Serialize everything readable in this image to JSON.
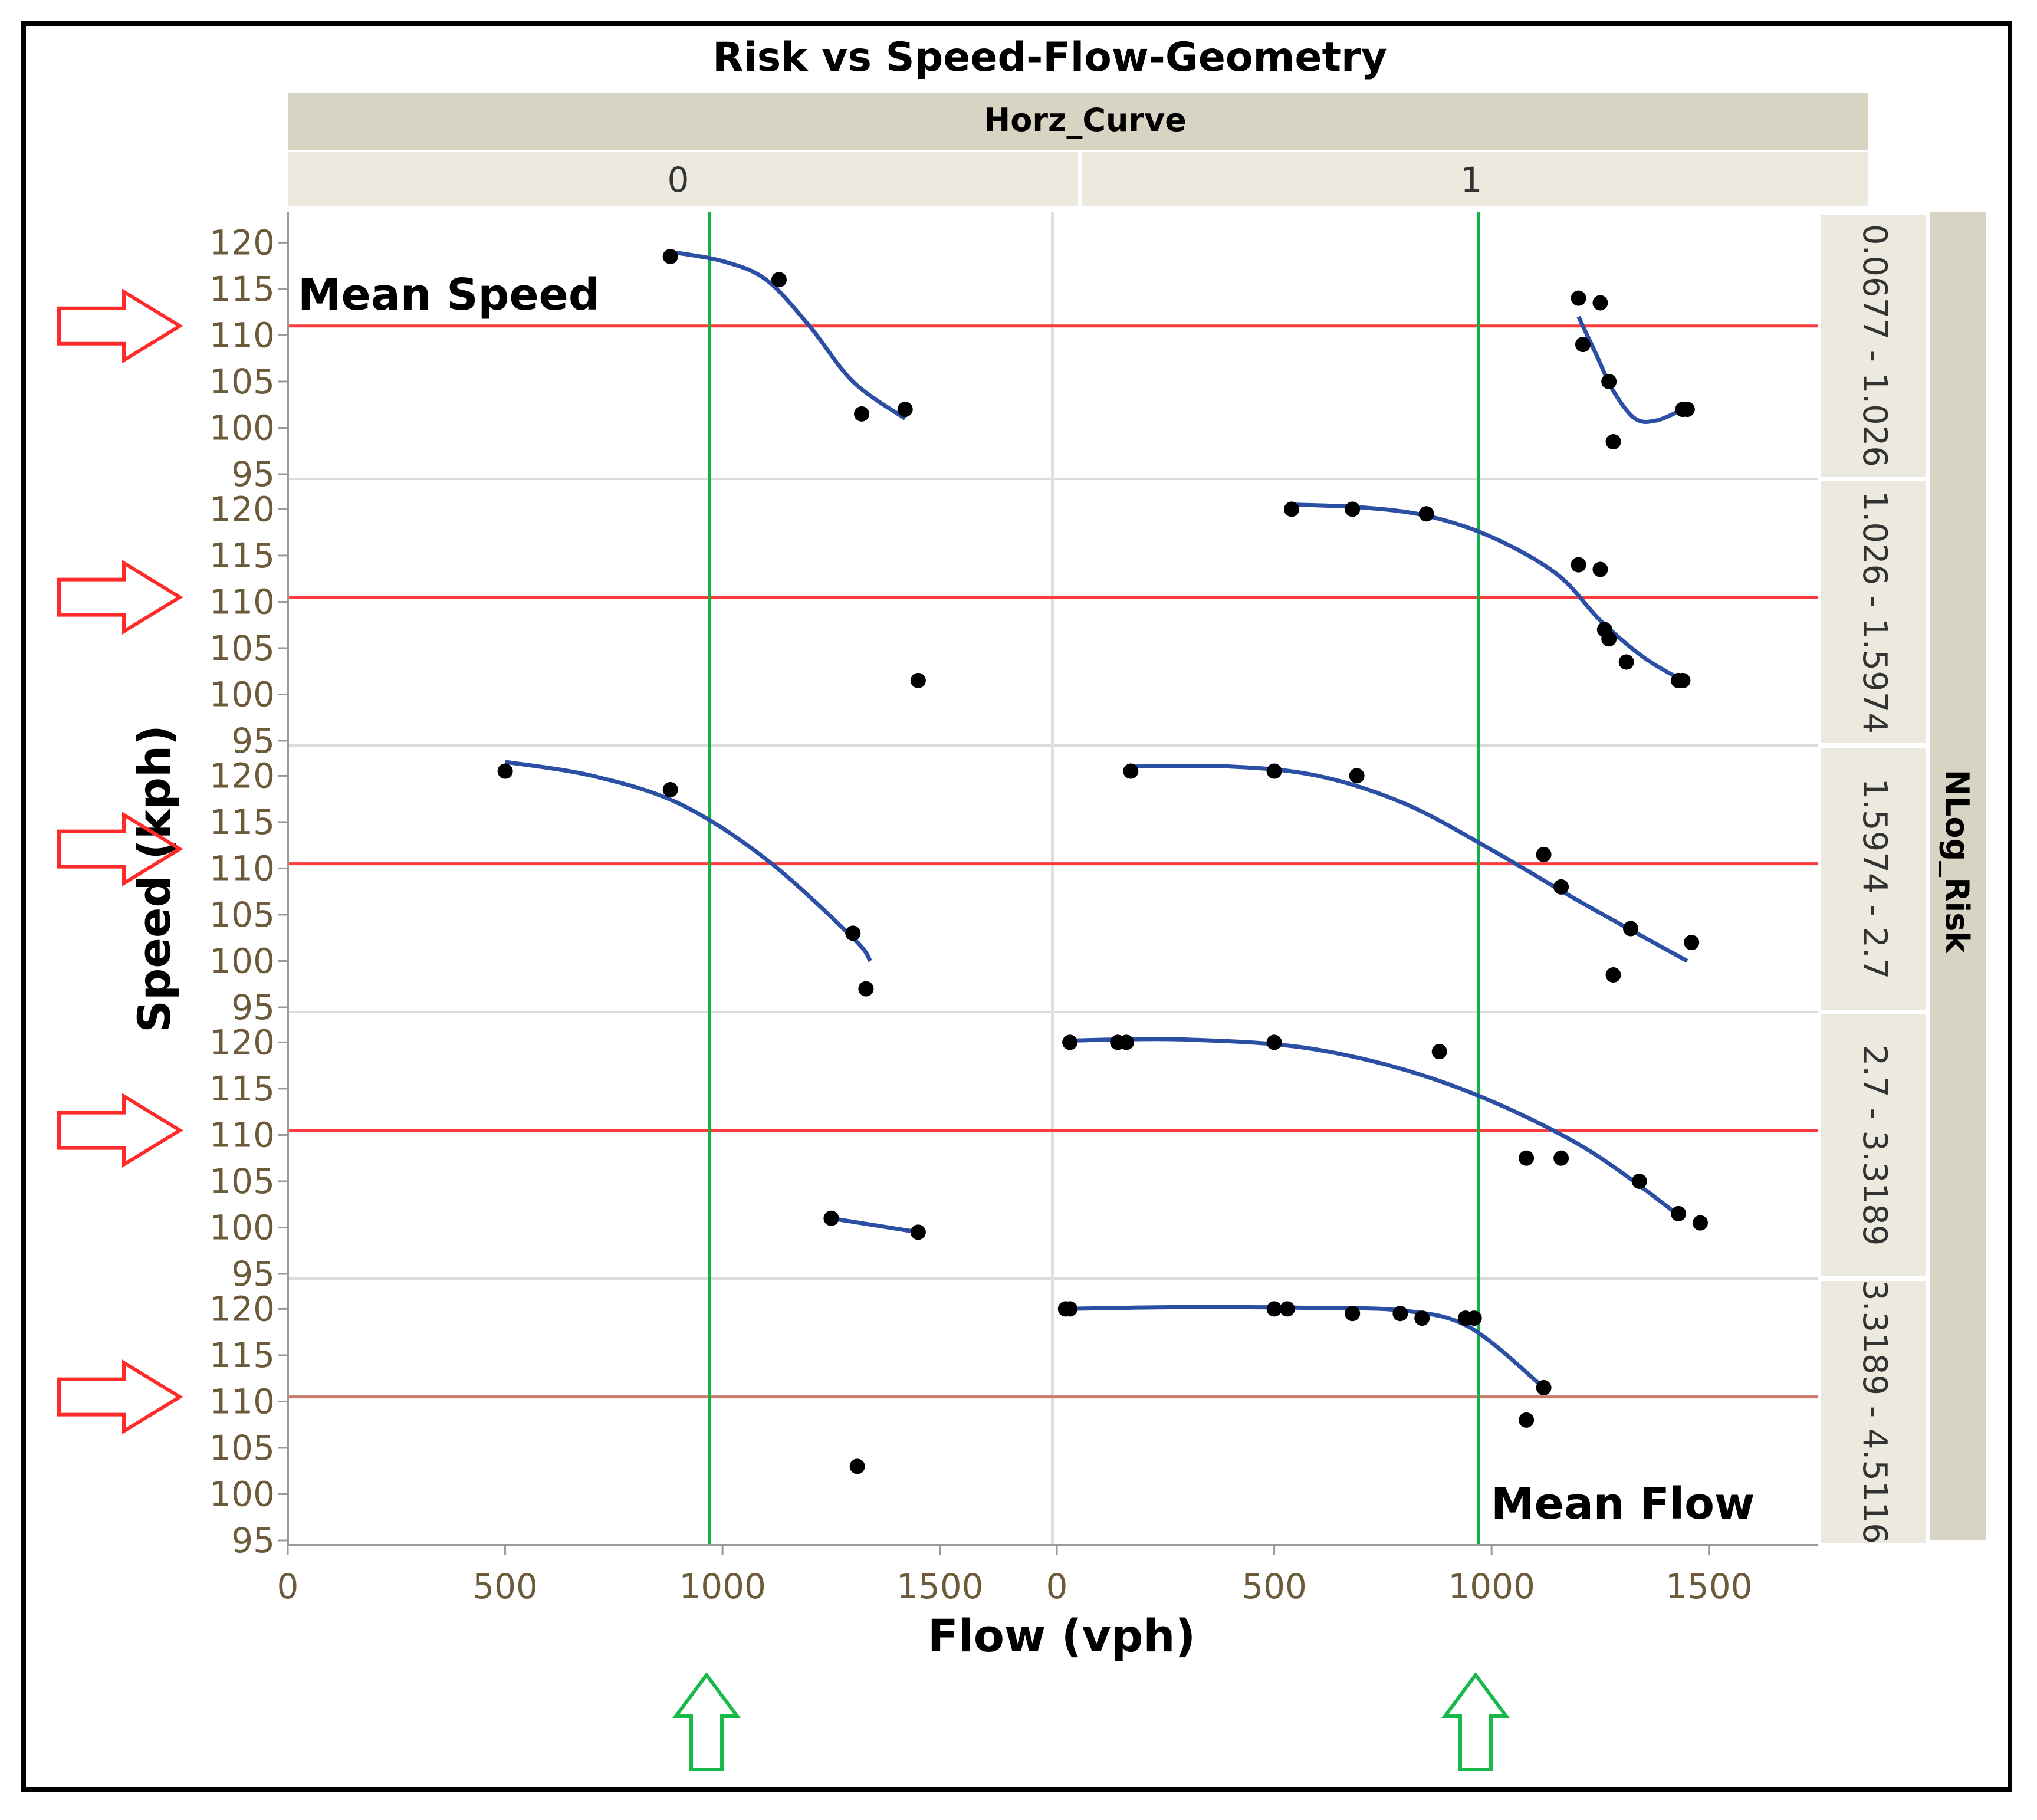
{
  "chart_data": {
    "type": "scatter",
    "title": "Risk vs Speed-Flow-Geometry",
    "column_group_label": "Horz_Curve",
    "columns": [
      "0",
      "1"
    ],
    "row_group_label": "NLog_Risk",
    "rows": [
      "0.0677 - 1.026",
      "1.026 - 1.5974",
      "1.5974 - 2.7",
      "2.7 - 3.3189",
      "3.3189 - 4.5116"
    ],
    "xlabel": "Flow (vph)",
    "ylabel": "Speed (kph)",
    "xlim": [
      0,
      1750
    ],
    "ylim": [
      95,
      122
    ],
    "xticks": [
      "0",
      "500",
      "1000",
      "1500"
    ],
    "yticks": [
      "95",
      "100",
      "105",
      "110",
      "115",
      "120"
    ],
    "mean_speed_label": "Mean Speed",
    "mean_flow_label": "Mean Flow",
    "mean_flow": [
      970,
      970
    ],
    "mean_speed": [
      111,
      110.5,
      110.5,
      110.5,
      110.5
    ],
    "colors": {
      "points": "#000000",
      "fit": "#2b4fa3",
      "mean_speed": "#ff3b3b",
      "mean_speed_last": "#c97a6a",
      "mean_flow": "#14b14a",
      "arrow_red": "#ff2a2a",
      "arrow_green": "#18b84a",
      "header_bg": "#d8d4c4",
      "header_sub_bg": "#ece9df"
    },
    "panels": [
      {
        "row": 0,
        "col": 0,
        "points": [
          [
            880,
            118.5
          ],
          [
            1130,
            116
          ],
          [
            1320,
            101.5
          ],
          [
            1420,
            102
          ]
        ],
        "fit": [
          [
            880,
            119
          ],
          [
            1000,
            118
          ],
          [
            1100,
            116
          ],
          [
            1200,
            111
          ],
          [
            1300,
            105
          ],
          [
            1420,
            101
          ]
        ]
      },
      {
        "row": 0,
        "col": 1,
        "points": [
          [
            1200,
            114
          ],
          [
            1250,
            113.5
          ],
          [
            1210,
            109
          ],
          [
            1270,
            105
          ],
          [
            1280,
            98.5
          ],
          [
            1440,
            102
          ],
          [
            1450,
            102
          ]
        ],
        "fit": [
          [
            1200,
            112
          ],
          [
            1240,
            108
          ],
          [
            1280,
            104
          ],
          [
            1330,
            101
          ],
          [
            1380,
            100.8
          ],
          [
            1440,
            102
          ]
        ]
      },
      {
        "row": 1,
        "col": 0,
        "points": [
          [
            1450,
            101.5
          ]
        ],
        "fit": []
      },
      {
        "row": 1,
        "col": 1,
        "points": [
          [
            540,
            120
          ],
          [
            680,
            120
          ],
          [
            850,
            119.5
          ],
          [
            1200,
            114
          ],
          [
            1250,
            113.5
          ],
          [
            1260,
            107
          ],
          [
            1270,
            106
          ],
          [
            1310,
            103.5
          ],
          [
            1430,
            101.5
          ],
          [
            1440,
            101.5
          ]
        ],
        "fit": [
          [
            540,
            120.5
          ],
          [
            700,
            120.2
          ],
          [
            850,
            119.3
          ],
          [
            1000,
            117
          ],
          [
            1150,
            113
          ],
          [
            1250,
            108
          ],
          [
            1350,
            104
          ],
          [
            1440,
            101.5
          ]
        ]
      },
      {
        "row": 2,
        "col": 0,
        "points": [
          [
            500,
            120.5
          ],
          [
            880,
            118.5
          ],
          [
            1300,
            103
          ],
          [
            1330,
            97
          ]
        ],
        "fit": [
          [
            500,
            121.5
          ],
          [
            700,
            120
          ],
          [
            900,
            117
          ],
          [
            1100,
            111
          ],
          [
            1300,
            102.5
          ],
          [
            1340,
            100
          ]
        ]
      },
      {
        "row": 2,
        "col": 1,
        "points": [
          [
            170,
            120.5
          ],
          [
            500,
            120.5
          ],
          [
            690,
            120
          ],
          [
            1120,
            111.5
          ],
          [
            1160,
            108
          ],
          [
            1280,
            98.5
          ],
          [
            1320,
            103.5
          ],
          [
            1460,
            102
          ]
        ],
        "fit": [
          [
            170,
            121
          ],
          [
            400,
            121
          ],
          [
            600,
            120
          ],
          [
            800,
            117
          ],
          [
            1000,
            112
          ],
          [
            1200,
            106.5
          ],
          [
            1450,
            100
          ]
        ]
      },
      {
        "row": 3,
        "col": 0,
        "points": [
          [
            1250,
            101
          ],
          [
            1450,
            99.5
          ]
        ],
        "fit": [
          [
            1250,
            101
          ],
          [
            1450,
            99.5
          ]
        ]
      },
      {
        "row": 3,
        "col": 1,
        "points": [
          [
            30,
            120
          ],
          [
            140,
            120
          ],
          [
            160,
            120
          ],
          [
            500,
            120
          ],
          [
            880,
            119
          ],
          [
            1080,
            107.5
          ],
          [
            1160,
            107.5
          ],
          [
            1340,
            105
          ],
          [
            1430,
            101.5
          ],
          [
            1480,
            100.5
          ]
        ],
        "fit": [
          [
            30,
            120.2
          ],
          [
            300,
            120.3
          ],
          [
            600,
            119.2
          ],
          [
            900,
            115.5
          ],
          [
            1200,
            109
          ],
          [
            1440,
            101
          ]
        ]
      },
      {
        "row": 4,
        "col": 0,
        "points": [
          [
            1310,
            103
          ]
        ],
        "fit": []
      },
      {
        "row": 4,
        "col": 1,
        "points": [
          [
            20,
            120
          ],
          [
            30,
            120
          ],
          [
            500,
            120
          ],
          [
            530,
            120
          ],
          [
            680,
            119.5
          ],
          [
            790,
            119.5
          ],
          [
            840,
            119
          ],
          [
            940,
            119
          ],
          [
            960,
            119
          ],
          [
            1080,
            108
          ],
          [
            1120,
            111.5
          ]
        ],
        "fit": [
          [
            20,
            120
          ],
          [
            300,
            120.2
          ],
          [
            600,
            120.1
          ],
          [
            800,
            119.8
          ],
          [
            950,
            118
          ],
          [
            1120,
            111.5
          ]
        ]
      }
    ]
  }
}
